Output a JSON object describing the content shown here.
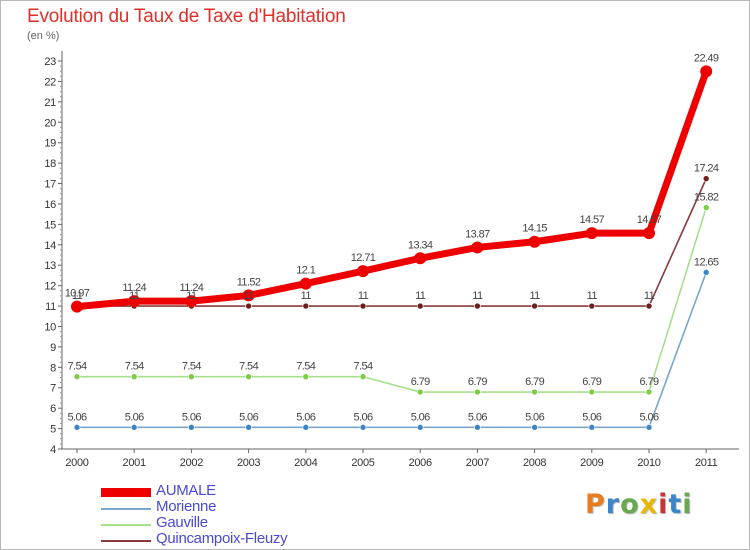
{
  "chart_data": {
    "type": "line",
    "title": "Evolution du Taux de Taxe d'Habitation",
    "subtitle": "(en %)",
    "x": [
      "2000",
      "2001",
      "2002",
      "2003",
      "2004",
      "2005",
      "2006",
      "2007",
      "2008",
      "2009",
      "2010",
      "2011"
    ],
    "ylim": [
      4,
      23
    ],
    "yticks": [
      "4",
      "5",
      "6",
      "7",
      "8",
      "9",
      "10",
      "11",
      "12",
      "13",
      "14",
      "15",
      "16",
      "17",
      "18",
      "19",
      "20",
      "21",
      "22",
      "23"
    ],
    "grid": false,
    "legend_position": "bottom-left",
    "series": [
      {
        "name": "AUMALE",
        "color": "#ee0000",
        "emphasis": true,
        "values": [
          10.97,
          11.24,
          11.24,
          11.52,
          12.1,
          12.71,
          13.34,
          13.87,
          14.15,
          14.57,
          14.57,
          22.49
        ],
        "labels": [
          "10.97",
          "11.24",
          "11.24",
          "11.52",
          "12.1",
          "12.71",
          "13.34",
          "13.87",
          "14.15",
          "14.57",
          "14.57",
          "22.49"
        ]
      },
      {
        "name": "Morienne",
        "color": "#7aa6cc",
        "marker": "#3d85c6",
        "values": [
          5.06,
          5.06,
          5.06,
          5.06,
          5.06,
          5.06,
          5.06,
          5.06,
          5.06,
          5.06,
          5.06,
          12.65
        ],
        "labels": [
          "5.06",
          "5.06",
          "5.06",
          "5.06",
          "5.06",
          "5.06",
          "5.06",
          "5.06",
          "5.06",
          "5.06",
          "5.06",
          "12.65"
        ]
      },
      {
        "name": "Gauville",
        "color": "#a6e08c",
        "marker": "#7ccc44",
        "values": [
          7.54,
          7.54,
          7.54,
          7.54,
          7.54,
          7.54,
          6.79,
          6.79,
          6.79,
          6.79,
          6.79,
          15.82
        ],
        "labels": [
          "7.54",
          "7.54",
          "7.54",
          "7.54",
          "7.54",
          "7.54",
          "6.79",
          "6.79",
          "6.79",
          "6.79",
          "6.79",
          "15.82"
        ]
      },
      {
        "name": "Quincampoix-Fleuzy",
        "color": "#8a3a3a",
        "marker": "#6b1f1f",
        "values": [
          11,
          11,
          11,
          11,
          11,
          11,
          11,
          11,
          11,
          11,
          11,
          17.24
        ],
        "labels": [
          "11",
          "11",
          "11",
          "11",
          "11",
          "11",
          "11",
          "11",
          "11",
          "11",
          "11",
          "17.24"
        ]
      }
    ]
  },
  "brand": {
    "letters": [
      "P",
      "r",
      "o",
      "x",
      "i",
      "t",
      "i"
    ],
    "colors": [
      "#e87c1e",
      "#3d85c6",
      "#6aa84f",
      "#e6b800",
      "#cc3333",
      "#3d85c6",
      "#6aa84f"
    ]
  }
}
